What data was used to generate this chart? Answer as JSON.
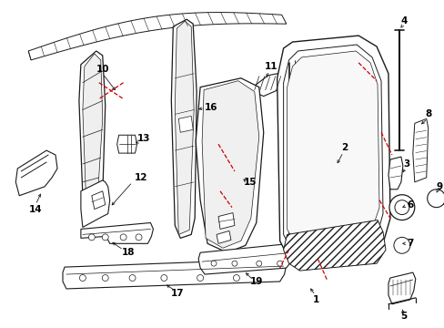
{
  "bg_color": "#ffffff",
  "lc": "#1a1a1a",
  "rc": "#cc0000",
  "figsize": [
    4.89,
    3.6
  ],
  "dpi": 100
}
